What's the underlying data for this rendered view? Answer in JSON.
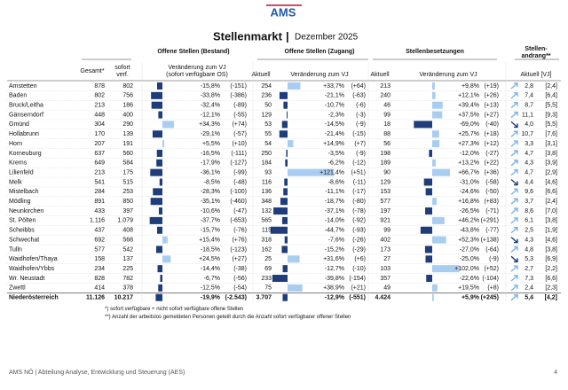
{
  "header": {
    "logo": "AMS",
    "title": "Stellenmarkt",
    "subtitle": "Dezember 2025"
  },
  "table": {
    "groups": [
      "Offene Stellen (Bestand)",
      "Offene Stellen (Zugang)",
      "Stellenbesetzungen",
      "Stellen-",
      "andrang**"
    ],
    "columns": [
      "Gesamt*",
      "sofort",
      "verf.",
      "Veränderung zum VJ",
      "(sofort verfügbare OS)",
      "Aktuell",
      "Veränderung zum VJ",
      "Aktuell",
      "Veränderung zum VJ",
      "Aktuell [VJ]"
    ],
    "rows": [
      [
        "Amstetten",
        "878",
        "802",
        "-15,8%",
        "(-151)",
        "254",
        "+33,7%",
        "(+64)",
        "213",
        "+9,8%",
        "(+19)",
        "2,8",
        "[2,4]"
      ],
      [
        "Baden",
        "802",
        "756",
        "-33,8%",
        "(-386)",
        "236",
        "-21,1%",
        "(-63)",
        "240",
        "+12,1%",
        "(+26)",
        "7,4",
        "[6,4]"
      ],
      [
        "Bruck/Leitha",
        "213",
        "186",
        "-32,4%",
        "(-89)",
        "50",
        "-10,7%",
        "(-6)",
        "46",
        "+39,4%",
        "(+13)",
        "8,7",
        "[5,5]"
      ],
      [
        "Gänserndorf",
        "448",
        "400",
        "-12,1%",
        "(-55)",
        "129",
        "-2,3%",
        "(-3)",
        "99",
        "+37,5%",
        "(+27)",
        "11,1",
        "[9,3]"
      ],
      [
        "Gmünd",
        "304",
        "290",
        "+34,3%",
        "(+74)",
        "53",
        "-14,5%",
        "(-9)",
        "18",
        "-69,0%",
        "(-40)",
        "4,0",
        "[5,5]"
      ],
      [
        "Hollabrunn",
        "170",
        "139",
        "-29,1%",
        "(-57)",
        "55",
        "-21,4%",
        "(-15)",
        "88",
        "+25,7%",
        "(+18)",
        "10,7",
        "[7,6]"
      ],
      [
        "Horn",
        "207",
        "191",
        "+5,5%",
        "(+10)",
        "54",
        "+14,9%",
        "(+7)",
        "56",
        "+27,3%",
        "(+12)",
        "3,3",
        "[3,1]"
      ],
      [
        "Korneuburg",
        "637",
        "560",
        "-16,5%",
        "(-111)",
        "250",
        "-3,5%",
        "(-9)",
        "198",
        "-12,0%",
        "(-27)",
        "4,7",
        "[3,8]"
      ],
      [
        "Krems",
        "649",
        "584",
        "-17,9%",
        "(-127)",
        "184",
        "-6,2%",
        "(-12)",
        "189",
        "+13,2%",
        "(+22)",
        "4,3",
        "[3,9]"
      ],
      [
        "Lilienfeld",
        "213",
        "175",
        "-36,1%",
        "(-99)",
        "93",
        "+121,4%",
        "(+51)",
        "90",
        "+66,7%",
        "(+36)",
        "4,7",
        "[2,9]"
      ],
      [
        "Melk",
        "541",
        "515",
        "-8,5%",
        "(-48)",
        "116",
        "-8,6%",
        "(-11)",
        "129",
        "-31,0%",
        "(-58)",
        "4,4",
        "[4,6]"
      ],
      [
        "Mistelbach",
        "284",
        "253",
        "-28,3%",
        "(-100)",
        "136",
        "-11,1%",
        "(-17)",
        "153",
        "-24,6%",
        "(-50)",
        "9,6",
        "[6,6]"
      ],
      [
        "Mödling",
        "891",
        "850",
        "-35,1%",
        "(-460)",
        "348",
        "-18,7%",
        "(-80)",
        "577",
        "+16,8%",
        "(+83)",
        "3,7",
        "[2,4]"
      ],
      [
        "Neunkirchen",
        "433",
        "397",
        "-10,6%",
        "(-47)",
        "132",
        "-37,1%",
        "(-78)",
        "197",
        "-26,5%",
        "(-71)",
        "8,6",
        "[7,0]"
      ],
      [
        "St. Pölten",
        "1.116",
        "1.079",
        "-37,7%",
        "(-653)",
        "565",
        "-14,0%",
        "(-92)",
        "921",
        "+46,2%",
        "(+291)",
        "6,1",
        "[3,8]"
      ],
      [
        "Scheibbs",
        "437",
        "408",
        "-15,7%",
        "(-76)",
        "115",
        "-44,7%",
        "(-93)",
        "99",
        "-43,8%",
        "(-77)",
        "2,5",
        "[1,9]"
      ],
      [
        "Schwechat",
        "692",
        "568",
        "+15,4%",
        "(+76)",
        "318",
        "-7,6%",
        "(-26)",
        "402",
        "+52,3%",
        "(+138)",
        "4,3",
        "[4,6]"
      ],
      [
        "Tulln",
        "577",
        "542",
        "-18,5%",
        "(-123)",
        "162",
        "-15,2%",
        "(-29)",
        "173",
        "-27,0%",
        "(-64)",
        "4,8",
        "[3,8]"
      ],
      [
        "Waidhofen/Thaya",
        "158",
        "137",
        "+24,5%",
        "(+27)",
        "25",
        "+31,6%",
        "(+6)",
        "27",
        "-25,0%",
        "(-9)",
        "5,3",
        "[6,9]"
      ],
      [
        "Waidhofen/Ybbs",
        "234",
        "225",
        "-14,4%",
        "(-38)",
        "69",
        "-12,7%",
        "(-10)",
        "103",
        "+102,0%",
        "(+52)",
        "2,7",
        "[2,2]"
      ],
      [
        "Wr. Neustadt",
        "828",
        "782",
        "-6,7%",
        "(-56)",
        "233",
        "-39,8%",
        "(-154)",
        "357",
        "-22,6%",
        "(-104)",
        "7,3",
        "[6,6]"
      ],
      [
        "Zwettl",
        "414",
        "378",
        "-12,5%",
        "(-54)",
        "75",
        "+38,9%",
        "(+21)",
        "49",
        "+19,5%",
        "(+8)",
        "2,4",
        "[2,3]"
      ],
      [
        "Niederösterreich",
        "11.126",
        "10.217",
        "-19,9%",
        "(-2.543)",
        "3.707",
        "-12,9%",
        "(-551)",
        "4.424",
        "+5,9%",
        "(+245)",
        "5,4",
        "[4,2]"
      ]
    ],
    "footnotes": [
      "*) sofort verfügbare + nicht sofort verfügbare offene Stellen",
      "**) Anzahl der arbeitslos gemeldeten Personen geteilt durch die Anzahl sofort verfügbarer offener Stellen"
    ]
  },
  "footer": {
    "text": "AMS NÖ | Abteilung Analyse, Entwicklung und Steuerung (AES)",
    "page": "4"
  }
}
